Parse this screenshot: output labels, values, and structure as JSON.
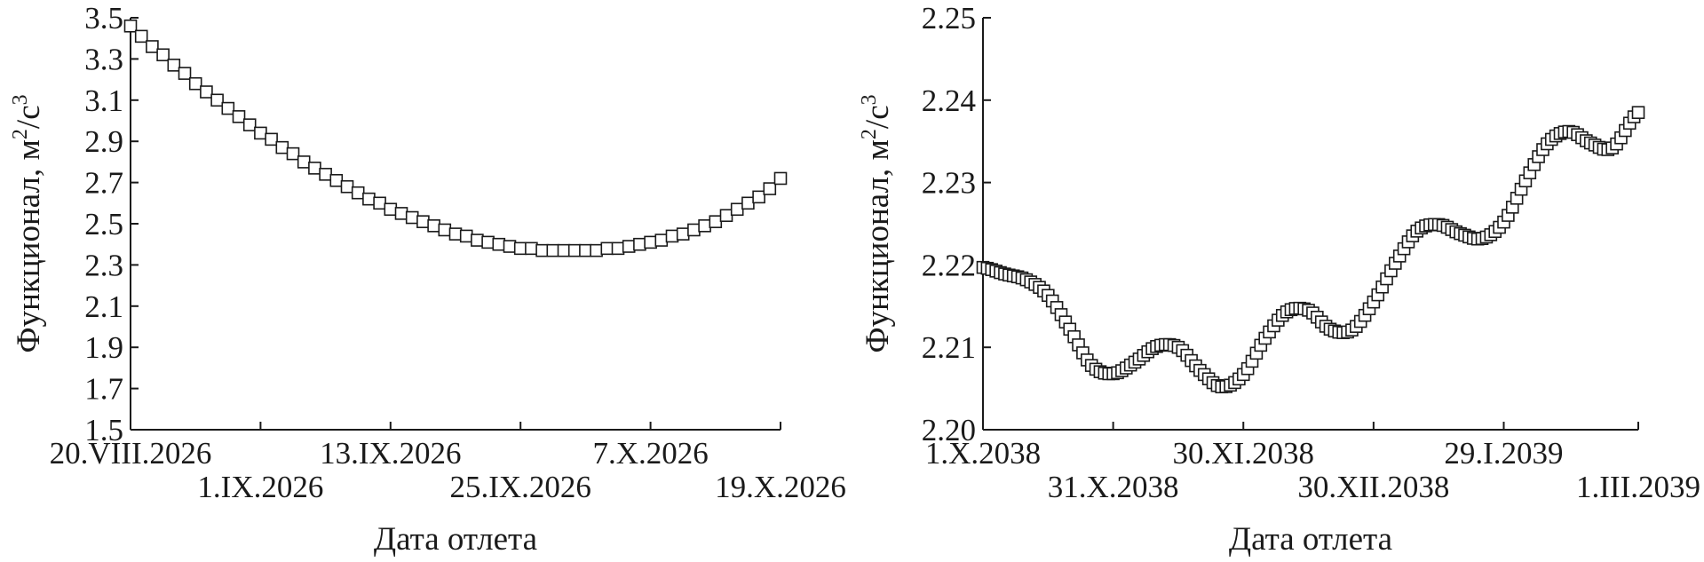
{
  "chart_data": [
    {
      "type": "scatter",
      "marker": "open-square",
      "xlabel": "Дата отлета",
      "ylabel": "Функционал, м²/с³",
      "ylabel_parts": [
        "Функционал, м",
        "2",
        "/с",
        "3"
      ],
      "ylim": [
        1.5,
        3.5
      ],
      "yticks": [
        "1.5",
        "1.7",
        "1.9",
        "2.1",
        "2.3",
        "2.5",
        "2.7",
        "2.9",
        "3.1",
        "3.3",
        "3.5"
      ],
      "xlim": [
        "2026-08-20",
        "2026-10-19"
      ],
      "xticks": [
        "2026-08-20",
        "2026-09-01",
        "2026-09-13",
        "2026-09-25",
        "2026-10-07",
        "2026-10-19"
      ],
      "xtick_labels": [
        "20.VIII.2026",
        "1.IX.2026",
        "13.IX.2026",
        "25.IX.2026",
        "7.X.2026",
        "19.X.2026"
      ],
      "grid": false,
      "series": [
        {
          "x_start": "2026-08-20",
          "x_step_days": 1,
          "y": [
            3.46,
            3.41,
            3.36,
            3.32,
            3.27,
            3.23,
            3.18,
            3.14,
            3.1,
            3.06,
            3.02,
            2.98,
            2.94,
            2.91,
            2.87,
            2.84,
            2.8,
            2.77,
            2.74,
            2.71,
            2.68,
            2.65,
            2.62,
            2.6,
            2.57,
            2.55,
            2.53,
            2.51,
            2.49,
            2.47,
            2.45,
            2.44,
            2.42,
            2.41,
            2.4,
            2.39,
            2.38,
            2.38,
            2.37,
            2.37,
            2.37,
            2.37,
            2.37,
            2.37,
            2.38,
            2.38,
            2.39,
            2.4,
            2.41,
            2.42,
            2.44,
            2.45,
            2.47,
            2.49,
            2.51,
            2.54,
            2.57,
            2.6,
            2.63,
            2.67,
            2.72
          ]
        }
      ]
    },
    {
      "type": "scatter",
      "marker": "open-square",
      "xlabel": "Дата отлета",
      "ylabel": "Функционал, м²/с³",
      "ylabel_parts": [
        "Функционал, м",
        "2",
        "/с",
        "3"
      ],
      "ylim": [
        2.2,
        2.25
      ],
      "yticks": [
        "2.20",
        "2.21",
        "2.22",
        "2.23",
        "2.24",
        "2.25"
      ],
      "xlim": [
        "2038-10-01",
        "2039-03-01"
      ],
      "xticks": [
        "2038-10-01",
        "2038-10-31",
        "2038-11-30",
        "2038-12-30",
        "2039-01-29",
        "2039-03-01"
      ],
      "xtick_labels": [
        "1.X.2038",
        "31.X.2038",
        "30.XI.2038",
        "30.XII.2038",
        "29.I.2039",
        "1.III.2039"
      ],
      "grid": false,
      "series": [
        {
          "x": [
            "2038-10-01",
            "2038-10-06",
            "2038-10-11",
            "2038-10-16",
            "2038-10-21",
            "2038-10-26",
            "2038-10-31",
            "2038-11-05",
            "2038-11-10",
            "2038-11-15",
            "2038-11-20",
            "2038-11-25",
            "2038-11-30",
            "2038-12-05",
            "2038-12-10",
            "2038-12-15",
            "2038-12-20",
            "2038-12-25",
            "2038-12-30",
            "2039-01-04",
            "2039-01-09",
            "2039-01-14",
            "2039-01-19",
            "2039-01-24",
            "2039-01-29",
            "2039-02-03",
            "2039-02-08",
            "2039-02-13",
            "2039-02-18",
            "2039-02-23",
            "2039-03-01"
          ],
          "y": [
            2.2197,
            2.2189,
            2.2182,
            2.2163,
            2.2122,
            2.2078,
            2.2068,
            2.2082,
            2.2101,
            2.21,
            2.2072,
            2.2052,
            2.2067,
            2.2111,
            2.2143,
            2.2145,
            2.2122,
            2.2121,
            2.2155,
            2.2202,
            2.2241,
            2.2249,
            2.2238,
            2.2232,
            2.2252,
            2.2302,
            2.2347,
            2.2362,
            2.2348,
            2.2342,
            2.2385
          ]
        }
      ]
    }
  ]
}
